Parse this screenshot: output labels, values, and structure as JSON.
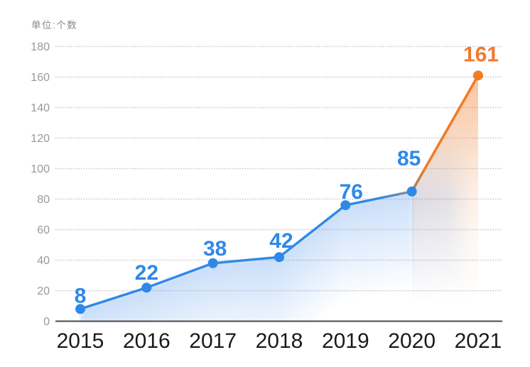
{
  "unit_label": "单位:个数",
  "chart_data": {
    "type": "line",
    "title": "",
    "unit_label": "单位:个数",
    "categories": [
      "2015",
      "2016",
      "2017",
      "2018",
      "2019",
      "2020",
      "2021"
    ],
    "values": [
      8,
      22,
      38,
      42,
      76,
      85,
      161
    ],
    "ylim": [
      0,
      180
    ],
    "ytick_step": 20,
    "ytick_labels": [
      "0",
      "20",
      "40",
      "60",
      "80",
      "100",
      "120",
      "140",
      "160",
      "180"
    ],
    "grid": "dotted",
    "legend": "none",
    "colors": {
      "line_blue": "#2f88e8",
      "line_transition_gray": "#8a8d93",
      "line_orange": "#ef7c29",
      "label_blue": "#2f88e8",
      "label_orange": "#f4782f",
      "dot_blue": "#2f88e8",
      "dot_orange": "#ef7c29",
      "area_blue": "#4088eb",
      "area_orange": "#f08232",
      "grid_line": "#c4c4c4",
      "axis_line": "#4a4a4a",
      "y_tick_text": "#999999",
      "x_tick_text": "#1a1a1a",
      "unit_text": "#8a8a8a"
    },
    "orange_segment_start_category": "2020"
  }
}
